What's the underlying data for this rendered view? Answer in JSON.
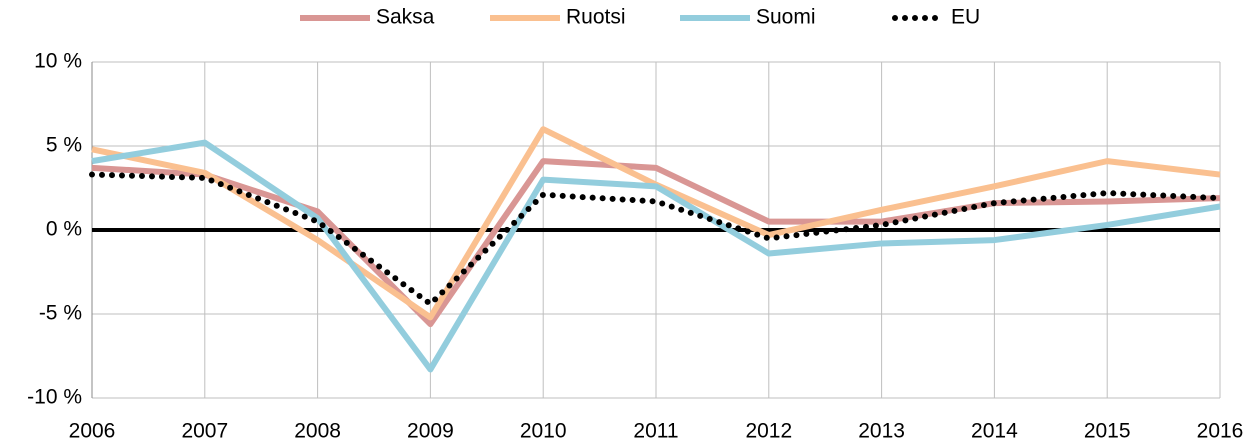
{
  "chart_data": {
    "type": "line",
    "categories": [
      "2006",
      "2007",
      "2008",
      "2009",
      "2010",
      "2011",
      "2012",
      "2013",
      "2014",
      "2015",
      "2016"
    ],
    "series": [
      {
        "name": "Saksa",
        "color": "#d99694",
        "values": [
          3.7,
          3.3,
          1.1,
          -5.6,
          4.1,
          3.7,
          0.5,
          0.5,
          1.6,
          1.7,
          1.9
        ]
      },
      {
        "name": "Ruotsi",
        "color": "#fac090",
        "values": [
          4.8,
          3.4,
          -0.6,
          -5.2,
          6.0,
          2.7,
          -0.3,
          1.2,
          2.6,
          4.1,
          3.3
        ]
      },
      {
        "name": "Suomi",
        "color": "#93cddd",
        "values": [
          4.1,
          5.2,
          0.7,
          -8.3,
          3.0,
          2.6,
          -1.4,
          -0.8,
          -0.6,
          0.3,
          1.4
        ]
      },
      {
        "name": "EU",
        "color": "#000000",
        "dotted": true,
        "values": [
          3.3,
          3.1,
          0.5,
          -4.4,
          2.1,
          1.7,
          -0.5,
          0.3,
          1.6,
          2.2,
          1.9
        ]
      }
    ],
    "ylim": [
      -10,
      10
    ],
    "yticks": [
      {
        "value": -10,
        "label": "-10 %"
      },
      {
        "value": -5,
        "label": "-5 %"
      },
      {
        "value": 0,
        "label": "0 %"
      },
      {
        "value": 5,
        "label": "5 %"
      },
      {
        "value": 10,
        "label": "10 %"
      }
    ],
    "grid": true,
    "legend": "top"
  }
}
